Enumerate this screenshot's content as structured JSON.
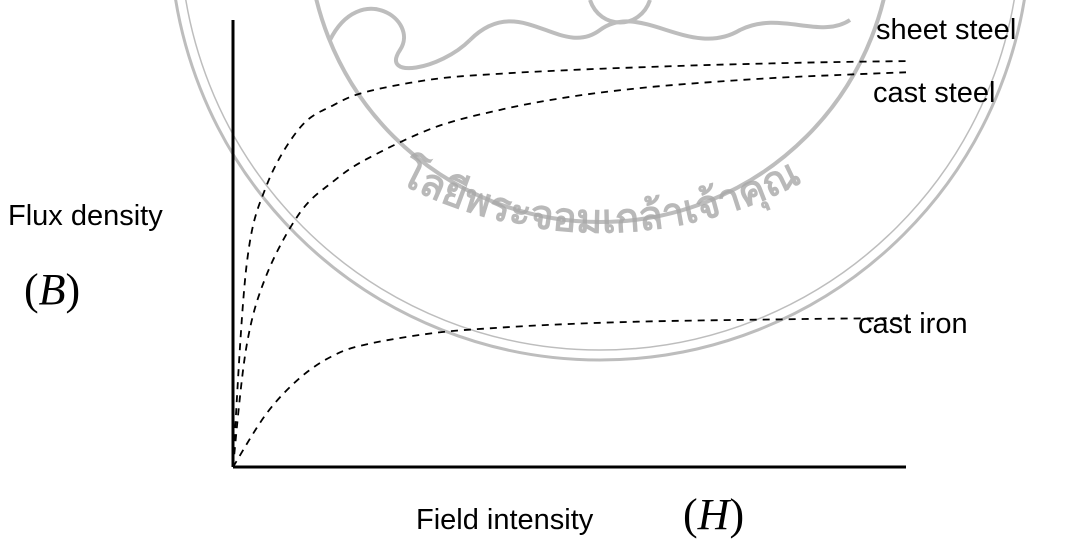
{
  "chart_data": {
    "type": "line",
    "title": "",
    "xlabel": "Field intensity",
    "xlabel_symbol": "H",
    "ylabel": "Flux density",
    "ylabel_symbol": "B",
    "axis_ticks": false,
    "grid": false,
    "legend": "none; series are labeled directly at the right end of each curve",
    "line_style": "dashed",
    "line_color": "#000000",
    "xlim": [
      0,
      1
    ],
    "ylim": [
      0,
      1
    ],
    "series": [
      {
        "name": "sheet steel",
        "x": [
          0,
          0.02,
          0.05,
          0.1,
          0.15,
          0.2,
          0.3,
          0.4,
          0.5,
          0.6,
          0.7,
          0.8,
          0.9,
          1.0
        ],
        "y": [
          0,
          0.45,
          0.63,
          0.76,
          0.81,
          0.84,
          0.868,
          0.88,
          0.888,
          0.894,
          0.899,
          0.903,
          0.906,
          0.908
        ]
      },
      {
        "name": "cast steel",
        "x": [
          0,
          0.02,
          0.05,
          0.1,
          0.15,
          0.2,
          0.3,
          0.4,
          0.5,
          0.6,
          0.7,
          0.8,
          0.9,
          1.0
        ],
        "y": [
          0,
          0.27,
          0.43,
          0.57,
          0.64,
          0.69,
          0.76,
          0.8,
          0.828,
          0.847,
          0.86,
          0.87,
          0.877,
          0.883
        ]
      },
      {
        "name": "cast iron",
        "x": [
          0,
          0.05,
          0.1,
          0.15,
          0.2,
          0.3,
          0.4,
          0.5,
          0.6,
          0.7,
          0.8,
          0.9,
          1.0
        ],
        "y": [
          0,
          0.12,
          0.2,
          0.25,
          0.275,
          0.3,
          0.312,
          0.32,
          0.325,
          0.328,
          0.33,
          0.332,
          0.333
        ]
      }
    ]
  },
  "watermark": {
    "type": "university seal",
    "text": "มหาวิทยาลัยเทคโนโลยีพระจอมเกล้าเจ้าคุณทหารลาดกระบัง",
    "visible_fragment": "โลยีพระจอมเกล้าเจ้าคุณ",
    "color": "#a8a8a8"
  }
}
